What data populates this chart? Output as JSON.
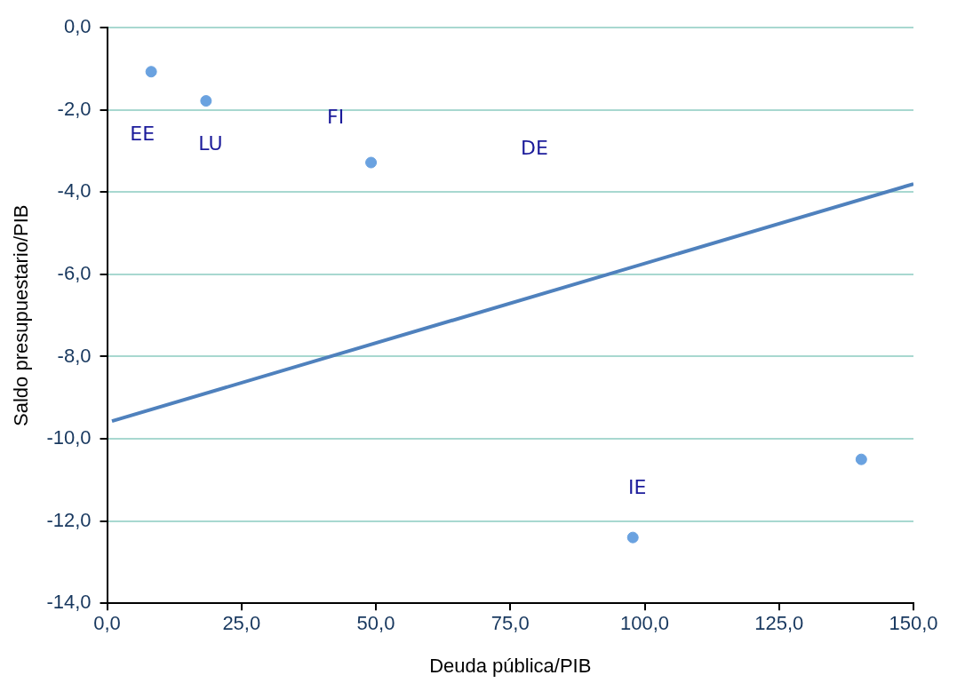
{
  "chart_data": {
    "type": "scatter",
    "xlabel": "Deuda pública/PIB",
    "ylabel": "Saldo presupuestario/PIB",
    "xlim": [
      0,
      150
    ],
    "ylim": [
      -14,
      0
    ],
    "xticks": [
      {
        "value": 0,
        "label": "0,0"
      },
      {
        "value": 25,
        "label": "25,0"
      },
      {
        "value": 50,
        "label": "50,0"
      },
      {
        "value": 75,
        "label": "75,0"
      },
      {
        "value": 100,
        "label": "100,0"
      },
      {
        "value": 125,
        "label": "125,0"
      },
      {
        "value": 150,
        "label": "150,0"
      }
    ],
    "yticks": [
      {
        "value": 0,
        "label": "0,0"
      },
      {
        "value": -2,
        "label": "-2,0"
      },
      {
        "value": -4,
        "label": "-4,0"
      },
      {
        "value": -6,
        "label": "-6,0"
      },
      {
        "value": -8,
        "label": "-8,0"
      },
      {
        "value": -10,
        "label": "-10,0"
      },
      {
        "value": -12,
        "label": "-12,0"
      },
      {
        "value": -14,
        "label": "-14,0"
      }
    ],
    "grid": "y",
    "legend": false,
    "marker": "circle",
    "series": [
      {
        "type": "scatter",
        "color": "#6aa2e0",
        "x": [
          8.2,
          18.4,
          49.1,
          97.8,
          140.3
        ],
        "values": [
          -1.07,
          -1.78,
          -3.28,
          -12.4,
          -10.5
        ]
      },
      {
        "type": "line",
        "color": "#4f81bd",
        "x": [
          0.9,
          150
        ],
        "values": [
          -9.57,
          -3.8
        ],
        "marker": "none"
      }
    ],
    "annotations": [
      {
        "text": "EE",
        "x": 8.2,
        "y": -1.07
      },
      {
        "text": "LU",
        "x": 18.4,
        "y": -1.78
      },
      {
        "text": "FI",
        "x": 49.1,
        "y": -3.28
      },
      "DE",
      {
        "text": "IE",
        "x": 97.8,
        "y": -12.4
      }
    ]
  }
}
